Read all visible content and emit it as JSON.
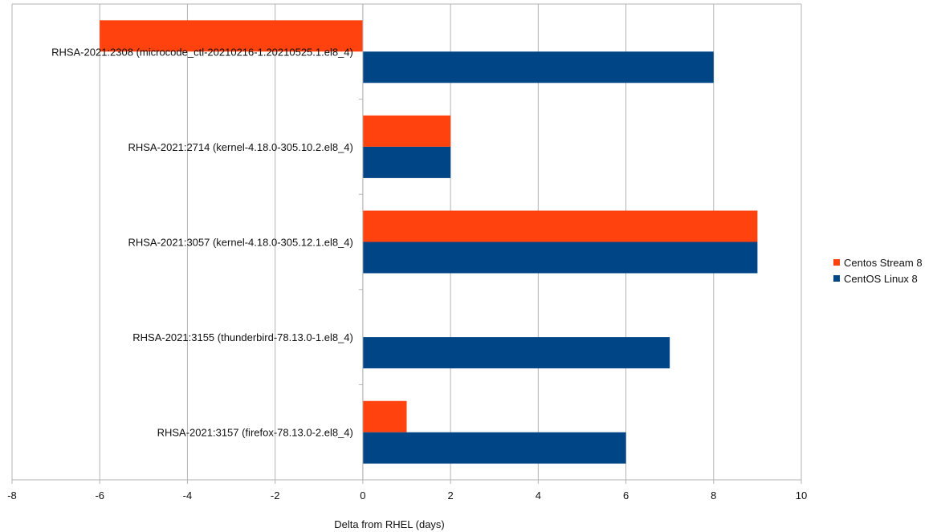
{
  "chart_data": {
    "type": "bar",
    "orientation": "horizontal",
    "categories": [
      "RHSA-2021:2308 (microcode_ctl-20210216-1.20210525.1.el8_4)",
      "RHSA-2021:2714 (kernel-4.18.0-305.10.2.el8_4)",
      "RHSA-2021:3057 (kernel-4.18.0-305.12.1.el8_4)",
      "RHSA-2021:3155 (thunderbird-78.13.0-1.el8_4)",
      "RHSA-2021:3157 (firefox-78.13.0-2.el8_4)"
    ],
    "series": [
      {
        "name": "Centos Stream 8",
        "color": "#ff420e",
        "values": [
          -6,
          2,
          9,
          0,
          1
        ]
      },
      {
        "name": "CentOS Linux 8",
        "color": "#004586",
        "values": [
          8,
          2,
          9,
          7,
          6
        ]
      }
    ],
    "xlabel": "Delta from RHEL (days)",
    "ylabel": "",
    "xlim": [
      -8,
      10
    ],
    "xticks": [
      -8,
      -6,
      -4,
      -2,
      0,
      2,
      4,
      6,
      8,
      10
    ],
    "grid": true,
    "legend": "right"
  }
}
